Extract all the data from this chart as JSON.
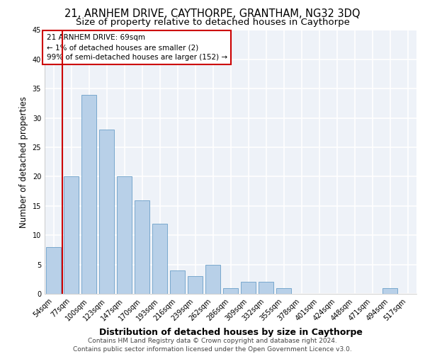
{
  "title_line1": "21, ARNHEM DRIVE, CAYTHORPE, GRANTHAM, NG32 3DQ",
  "title_line2": "Size of property relative to detached houses in Caythorpe",
  "xlabel": "Distribution of detached houses by size in Caythorpe",
  "ylabel": "Number of detached properties",
  "categories": [
    "54sqm",
    "77sqm",
    "100sqm",
    "123sqm",
    "147sqm",
    "170sqm",
    "193sqm",
    "216sqm",
    "239sqm",
    "262sqm",
    "286sqm",
    "309sqm",
    "332sqm",
    "355sqm",
    "378sqm",
    "401sqm",
    "424sqm",
    "448sqm",
    "471sqm",
    "494sqm",
    "517sqm"
  ],
  "values": [
    8,
    20,
    34,
    28,
    20,
    16,
    12,
    4,
    3,
    5,
    1,
    2,
    2,
    1,
    0,
    0,
    0,
    0,
    0,
    1,
    0
  ],
  "bar_color": "#b8d0e8",
  "bar_edge_color": "#6a9fc8",
  "highlight_color": "#cc0000",
  "annotation_text": "21 ARNHEM DRIVE: 69sqm\n← 1% of detached houses are smaller (2)\n99% of semi-detached houses are larger (152) →",
  "annotation_box_color": "#ffffff",
  "annotation_box_edge_color": "#cc0000",
  "ylim": [
    0,
    45
  ],
  "yticks": [
    0,
    5,
    10,
    15,
    20,
    25,
    30,
    35,
    40,
    45
  ],
  "footer_text": "Contains HM Land Registry data © Crown copyright and database right 2024.\nContains public sector information licensed under the Open Government Licence v3.0.",
  "background_color": "#eef2f8",
  "grid_color": "#ffffff",
  "title_fontsize": 10.5,
  "subtitle_fontsize": 9.5,
  "ylabel_fontsize": 8.5,
  "xlabel_fontsize": 9,
  "tick_fontsize": 7,
  "annotation_fontsize": 7.5,
  "footer_fontsize": 6.5
}
